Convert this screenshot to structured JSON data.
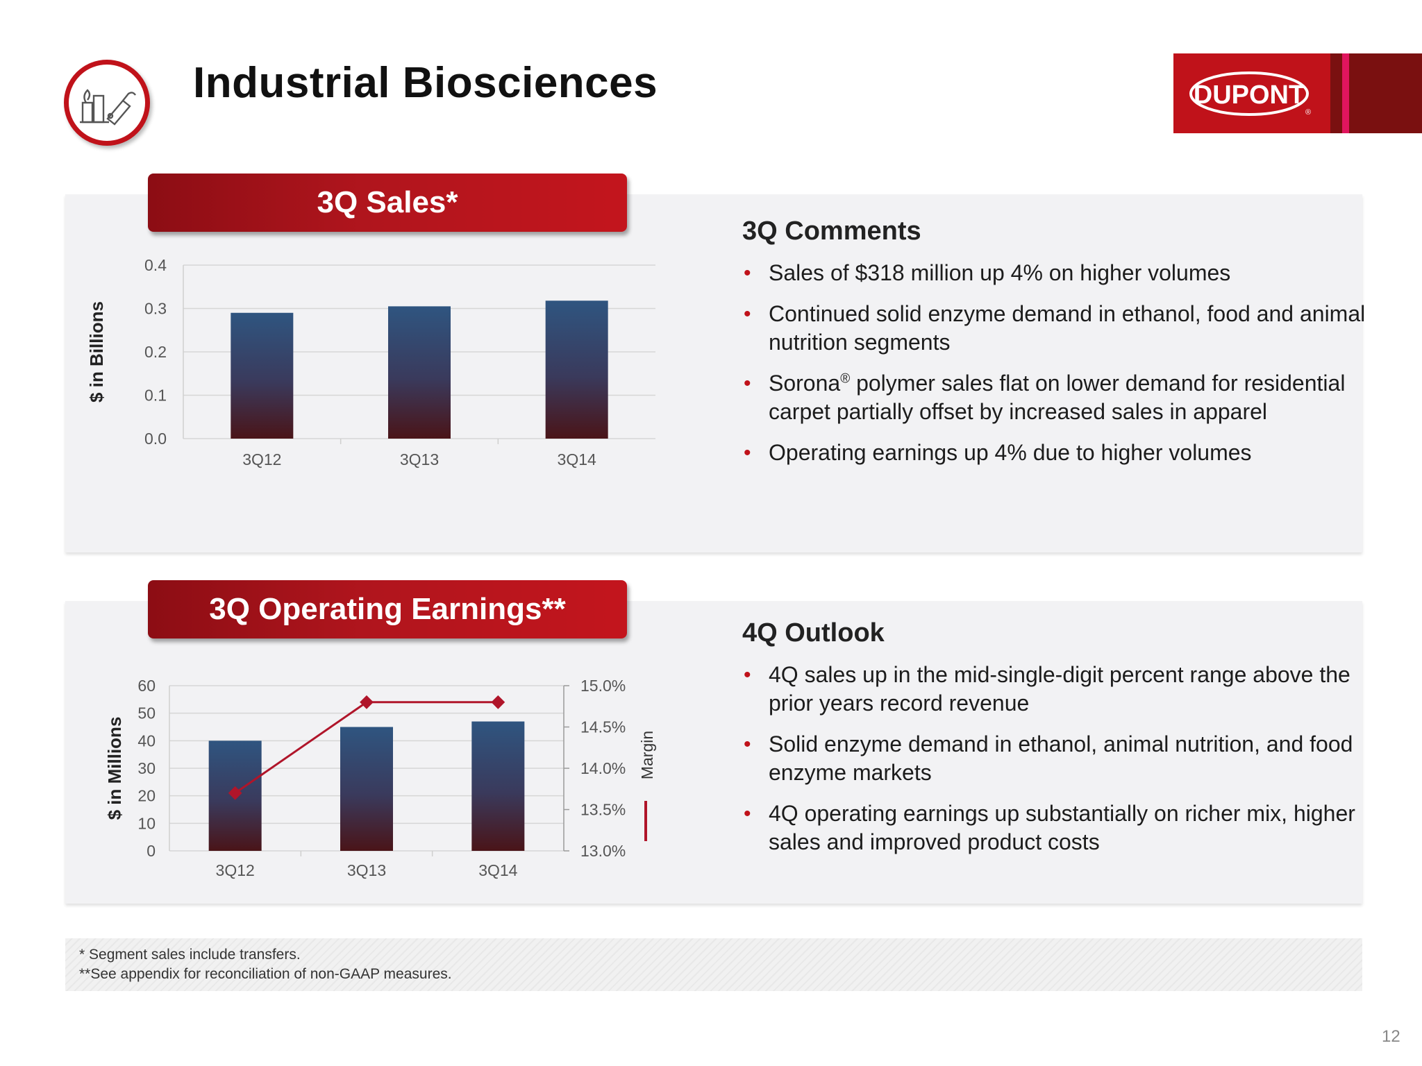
{
  "header": {
    "title": "Industrial Biosciences",
    "logo_text": "DUPONT",
    "logo_mark": "®"
  },
  "sales_panel": {
    "banner": "3Q Sales*"
  },
  "earnings_panel": {
    "banner": "3Q Operating Earnings**"
  },
  "comments": {
    "heading": "3Q Comments",
    "items": [
      "Sales of $318 million up 4% on higher volumes",
      "Continued solid enzyme demand in ethanol, food and animal nutrition segments",
      "polymer sales flat on lower demand for residential carpet partially offset by increased sales in apparel",
      "Operating earnings up 4% due to higher volumes"
    ],
    "sorona_brand": "Sorona",
    "registered_mark": "®"
  },
  "outlook": {
    "heading": "4Q Outlook",
    "items": [
      "4Q sales up in the mid-single-digit percent range above the prior years record revenue",
      "Solid enzyme demand in ethanol, animal nutrition, and food enzyme markets",
      "4Q operating earnings up substantially on richer mix, higher sales and improved product costs"
    ]
  },
  "footnotes": {
    "line1": "* Segment sales include transfers.",
    "line2": "**See appendix for reconciliation of non-GAAP measures."
  },
  "page_number": "12",
  "colors": {
    "brand_red": "#c0121a",
    "bar_top": "#2f5580",
    "bar_bottom": "#4a1418",
    "margin_line": "#b0152a"
  },
  "chart_data": [
    {
      "type": "bar",
      "categories": [
        "3Q12",
        "3Q13",
        "3Q14"
      ],
      "values": [
        0.29,
        0.305,
        0.318
      ],
      "title": "3Q Sales*",
      "xlabel": "",
      "ylabel": "$ in Billions",
      "ylim": [
        0,
        0.4
      ],
      "yticks": [
        "0.0",
        "0.1",
        "0.2",
        "0.3",
        "0.4"
      ],
      "grid": true
    },
    {
      "type": "bar",
      "categories": [
        "3Q12",
        "3Q13",
        "3Q14"
      ],
      "series": [
        {
          "name": "",
          "type": "bar",
          "axis": "left",
          "values": [
            40,
            45,
            47
          ]
        },
        {
          "name": "Margin",
          "type": "line",
          "axis": "right",
          "values": [
            13.7,
            14.8,
            14.8
          ]
        }
      ],
      "title": "3Q Operating Earnings**",
      "ylabel": "$ in Millions",
      "ylim": [
        0,
        60
      ],
      "yticks": [
        "0",
        "10",
        "20",
        "30",
        "40",
        "50",
        "60"
      ],
      "y2label": "Margin",
      "y2lim": [
        13.0,
        15.0
      ],
      "y2ticks": [
        "13.0%",
        "13.5%",
        "14.0%",
        "14.5%",
        "15.0%"
      ],
      "grid": true
    }
  ]
}
